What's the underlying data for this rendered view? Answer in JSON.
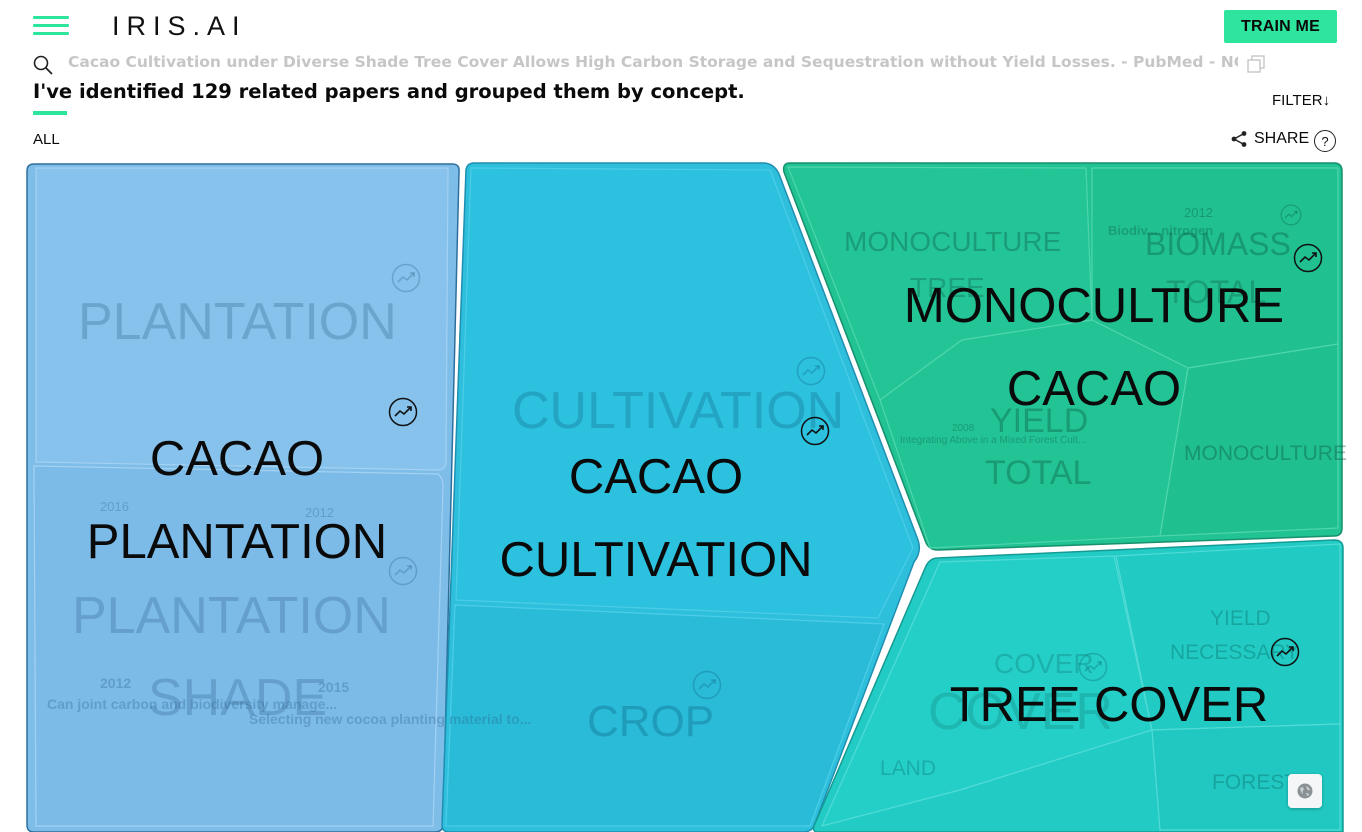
{
  "header": {
    "logo": "IRIS.AI",
    "train_button": "TRAIN ME",
    "query": "Cacao Cultivation under Diverse Shade Tree Cover Allows High Carbon Storage and Sequestration without Yield Losses. - PubMed - NCBI",
    "headline": "I've identified 129 related papers and grouped them by concept.",
    "filter": "FILTER",
    "all": "ALL",
    "share": "SHARE",
    "help": "?"
  },
  "colors": {
    "accent": "#2ee59d",
    "plantation": "#7fbde9",
    "cultivation": "#2ebfdd",
    "monoculture": "#21c293",
    "tree_cover": "#22ccc5"
  },
  "map": {
    "plantation": {
      "title": "CACAO PLANTATION",
      "sub1": "PLANTATION",
      "sub2": "PLANTATION",
      "sub3": "SHADE",
      "paper1": "Can joint carbon and biodiversity manage...",
      "paper2": "Selecting new cocoa planting material to...",
      "year1": "2012",
      "year2": "2016",
      "year3": "2012",
      "year4": "2015"
    },
    "cultivation": {
      "title": "CACAO CULTIVATION",
      "sub1": "CULTIVATION",
      "sub2": "CROP"
    },
    "monoculture": {
      "title": "MONOCULTURE CACAO",
      "sub1": "MONOCULTURE",
      "sub2": "TREE",
      "sub3": "BIOMASS",
      "sub4": "TOTAL",
      "sub5": "YIELD",
      "sub6": "TOTAL",
      "sub7": "MONOCULTURE",
      "year": "2012",
      "year2": "2008",
      "paper": "Biodiv... nitrogen",
      "paper2": "Integrating Above in a Mixed Forest Cult..."
    },
    "tree_cover": {
      "title": "TREE COVER",
      "sub1": "COVER",
      "sub2": "COVER",
      "sub3": "YIELD",
      "sub4": "NECESSARY",
      "sub5": "LAND",
      "sub6": "FOREST"
    }
  },
  "icons": {
    "menu": "hamburger-menu-icon",
    "search": "search-icon",
    "copy": "copy-icon",
    "share": "share-icon",
    "trend": "trend-up-icon",
    "globe": "globe-icon"
  }
}
